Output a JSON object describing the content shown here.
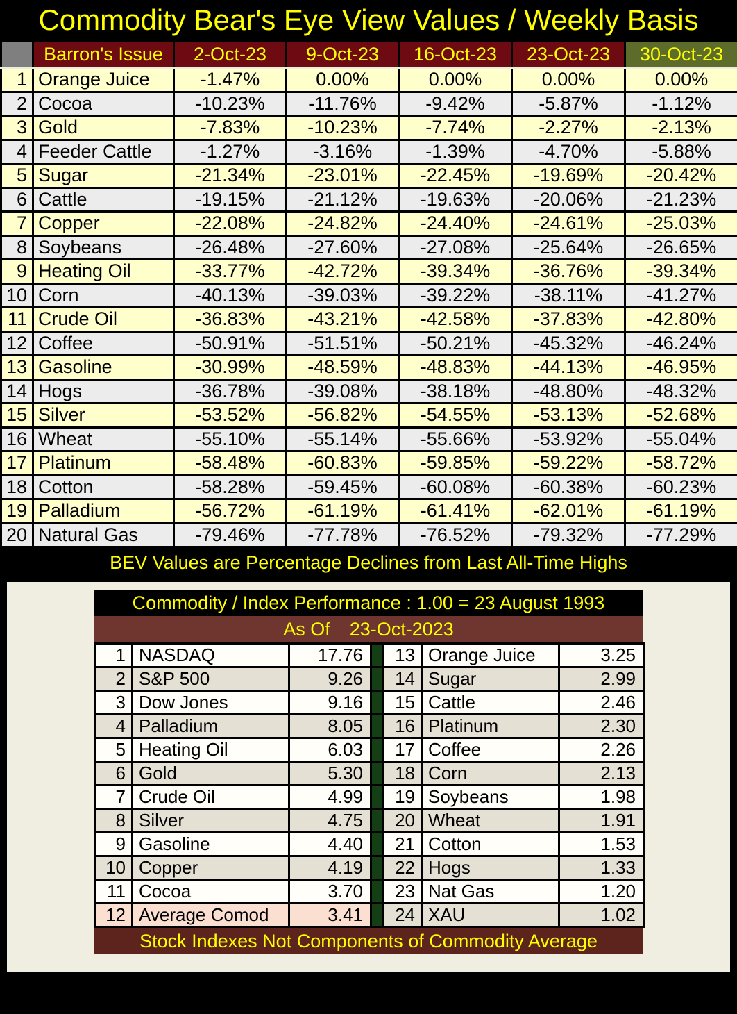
{
  "chart_data": [
    {
      "type": "table",
      "title": "Commodity Bear's Eye View Values / Weekly Basis",
      "columns": [
        "Barron's Issue",
        "2-Oct-23",
        "9-Oct-23",
        "16-Oct-23",
        "23-Oct-23",
        "30-Oct-23"
      ],
      "rows": [
        {
          "num": "1",
          "name": "Orange Juice",
          "values": [
            "-1.47%",
            "0.00%",
            "0.00%",
            "0.00%",
            "0.00%"
          ]
        },
        {
          "num": "2",
          "name": "Cocoa",
          "values": [
            "-10.23%",
            "-11.76%",
            "-9.42%",
            "-5.87%",
            "-1.12%"
          ]
        },
        {
          "num": "3",
          "name": "Gold",
          "values": [
            "-7.83%",
            "-10.23%",
            "-7.74%",
            "-2.27%",
            "-2.13%"
          ]
        },
        {
          "num": "4",
          "name": "Feeder Cattle",
          "values": [
            "-1.27%",
            "-3.16%",
            "-1.39%",
            "-4.70%",
            "-5.88%"
          ]
        },
        {
          "num": "5",
          "name": "Sugar",
          "values": [
            "-21.34%",
            "-23.01%",
            "-22.45%",
            "-19.69%",
            "-20.42%"
          ]
        },
        {
          "num": "6",
          "name": "Cattle",
          "values": [
            "-19.15%",
            "-21.12%",
            "-19.63%",
            "-20.06%",
            "-21.23%"
          ]
        },
        {
          "num": "7",
          "name": "Copper",
          "values": [
            "-22.08%",
            "-24.82%",
            "-24.40%",
            "-24.61%",
            "-25.03%"
          ]
        },
        {
          "num": "8",
          "name": "Soybeans",
          "values": [
            "-26.48%",
            "-27.60%",
            "-27.08%",
            "-25.64%",
            "-26.65%"
          ]
        },
        {
          "num": "9",
          "name": "Heating Oil",
          "values": [
            "-33.77%",
            "-42.72%",
            "-39.34%",
            "-36.76%",
            "-39.34%"
          ]
        },
        {
          "num": "10",
          "name": "Corn",
          "values": [
            "-40.13%",
            "-39.03%",
            "-39.22%",
            "-38.11%",
            "-41.27%"
          ]
        },
        {
          "num": "11",
          "name": "Crude Oil",
          "values": [
            "-36.83%",
            "-43.21%",
            "-42.58%",
            "-37.83%",
            "-42.80%"
          ]
        },
        {
          "num": "12",
          "name": "Coffee",
          "values": [
            "-50.91%",
            "-51.51%",
            "-50.21%",
            "-45.32%",
            "-46.24%"
          ]
        },
        {
          "num": "13",
          "name": "Gasoline",
          "values": [
            "-30.99%",
            "-48.59%",
            "-48.83%",
            "-44.13%",
            "-46.95%"
          ]
        },
        {
          "num": "14",
          "name": "Hogs",
          "values": [
            "-36.78%",
            "-39.08%",
            "-38.18%",
            "-48.80%",
            "-48.32%"
          ]
        },
        {
          "num": "15",
          "name": "Silver",
          "values": [
            "-53.52%",
            "-56.82%",
            "-54.55%",
            "-53.13%",
            "-52.68%"
          ]
        },
        {
          "num": "16",
          "name": "Wheat",
          "values": [
            "-55.10%",
            "-55.14%",
            "-55.66%",
            "-53.92%",
            "-55.04%"
          ]
        },
        {
          "num": "17",
          "name": "Platinum",
          "values": [
            "-58.48%",
            "-60.83%",
            "-59.85%",
            "-59.22%",
            "-58.72%"
          ]
        },
        {
          "num": "18",
          "name": "Cotton",
          "values": [
            "-58.28%",
            "-59.45%",
            "-60.08%",
            "-60.38%",
            "-60.23%"
          ]
        },
        {
          "num": "19",
          "name": "Palladium",
          "values": [
            "-56.72%",
            "-61.19%",
            "-61.41%",
            "-62.01%",
            "-61.19%"
          ]
        },
        {
          "num": "20",
          "name": "Natural Gas",
          "values": [
            "-79.46%",
            "-77.78%",
            "-76.52%",
            "-79.32%",
            "-77.29%"
          ]
        }
      ],
      "note": "BEV Values are Percentage Declines from Last All-Time Highs"
    },
    {
      "type": "table",
      "title": "Commodity / Index Performance : 1.00 = 23 August 1993",
      "as_of_label": "As Of",
      "as_of_date": "23-Oct-2023",
      "left_rows": [
        {
          "num": "1",
          "name": "NASDAQ",
          "value": "17.76"
        },
        {
          "num": "2",
          "name": "S&P 500",
          "value": "9.26"
        },
        {
          "num": "3",
          "name": "Dow Jones",
          "value": "9.16"
        },
        {
          "num": "4",
          "name": "Palladium",
          "value": "8.05"
        },
        {
          "num": "5",
          "name": "Heating Oil",
          "value": "6.03"
        },
        {
          "num": "6",
          "name": "Gold",
          "value": "5.30"
        },
        {
          "num": "7",
          "name": "Crude Oil",
          "value": "4.99"
        },
        {
          "num": "8",
          "name": "Silver",
          "value": "4.75"
        },
        {
          "num": "9",
          "name": "Gasoline",
          "value": "4.40"
        },
        {
          "num": "10",
          "name": "Copper",
          "value": "4.19"
        },
        {
          "num": "11",
          "name": "Cocoa",
          "value": "3.70"
        },
        {
          "num": "12",
          "name": "Average Comod",
          "value": "3.41"
        }
      ],
      "right_rows": [
        {
          "num": "13",
          "name": "Orange Juice",
          "value": "3.25"
        },
        {
          "num": "14",
          "name": "Sugar",
          "value": "2.99"
        },
        {
          "num": "15",
          "name": "Cattle",
          "value": "2.46"
        },
        {
          "num": "16",
          "name": "Platinum",
          "value": "2.30"
        },
        {
          "num": "17",
          "name": "Coffee",
          "value": "2.26"
        },
        {
          "num": "18",
          "name": "Corn",
          "value": "2.13"
        },
        {
          "num": "19",
          "name": "Soybeans",
          "value": "1.98"
        },
        {
          "num": "20",
          "name": "Wheat",
          "value": "1.91"
        },
        {
          "num": "21",
          "name": "Cotton",
          "value": "1.53"
        },
        {
          "num": "22",
          "name": "Hogs",
          "value": "1.33"
        },
        {
          "num": "23",
          "name": "Nat Gas",
          "value": "1.20"
        },
        {
          "num": "24",
          "name": "XAU",
          "value": "1.02"
        }
      ],
      "footer": "Stock Indexes Not Components of Commodity Average"
    }
  ],
  "colors": {
    "accent_yellow": "#ffff00",
    "header_maroon": "#6e0b12",
    "header_olive": "#5d6c2b",
    "corner_gray": "#7f7f7f",
    "row_yellow": "#ffffcc",
    "row_gray": "#ececec",
    "asof_brown": "#6e362f",
    "footer_maroon": "#5d241d",
    "divider_green": "#143f14",
    "panel_cream": "#f0ede1",
    "row_beige": "#e4e1d4",
    "row_peach": "#fbdfd0"
  }
}
